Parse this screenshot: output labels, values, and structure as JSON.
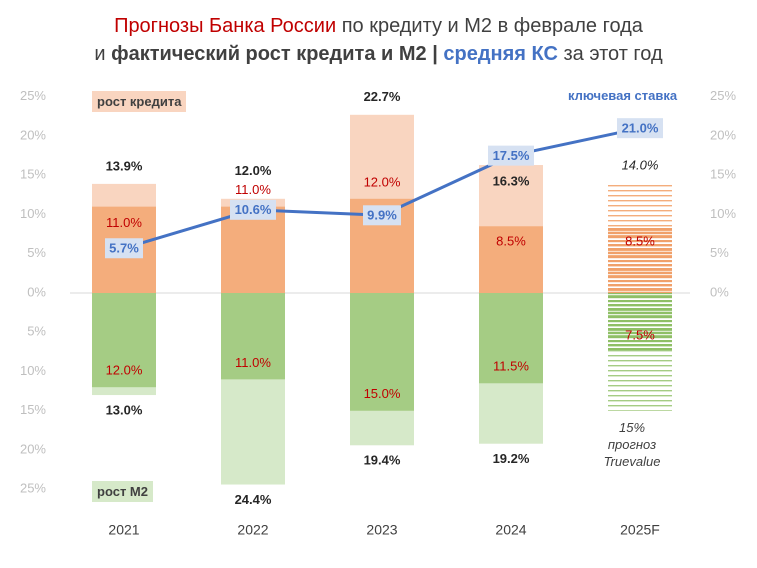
{
  "title": {
    "line1_red": "Прогнозы Банка России",
    "line1_rest": "по кредиту и М2 в феврале года",
    "line2_prefix": "и",
    "line2_bold": "фактический рост кредита и М2",
    "line2_sep": "|",
    "line2_blue": "средняя КС",
    "line2_suffix": "за этот год"
  },
  "legend": {
    "credit": "рост кредита",
    "m2": "рост М2",
    "rate": "ключевая ставка"
  },
  "note": {
    "line1": "15%",
    "line2": "прогноз",
    "line3": "Truevalue"
  },
  "colors": {
    "credit_fact": "#f9d5c0",
    "credit_forecast": "#f4ad7c",
    "m2_fact": "#d6e9c9",
    "m2_forecast": "#a5cc84",
    "rate_line": "#4472c4",
    "rate_label_bg": "#d6e1f2",
    "red_text": "#c00000"
  },
  "chart_data": {
    "type": "bar",
    "categories": [
      "2021",
      "2022",
      "2023",
      "2024",
      "2025F"
    ],
    "y_left_ticks": [
      "25%",
      "20%",
      "15%",
      "10%",
      "5%",
      "0%",
      "5%",
      "10%",
      "15%",
      "20%",
      "25%"
    ],
    "y_right_ticks": [
      "25%",
      "20%",
      "15%",
      "10%",
      "5%",
      "0%"
    ],
    "ylim": [
      -25,
      25
    ],
    "series": [
      {
        "name": "Фактический рост кредита",
        "values": [
          13.9,
          12.0,
          22.7,
          16.3,
          14.0
        ],
        "labels": [
          "13.9%",
          "12.0%",
          "22.7%",
          "16.3%",
          "14.0%"
        ]
      },
      {
        "name": "Прогноз ЦБ по кредиту",
        "values": [
          11.0,
          11.0,
          12.0,
          8.5,
          8.5
        ],
        "labels": [
          "11.0%",
          "11.0%",
          "12.0%",
          "8.5%",
          "8.5%"
        ]
      },
      {
        "name": "Фактический рост М2",
        "values": [
          13.0,
          24.4,
          19.4,
          19.2,
          15.0
        ],
        "labels": [
          "13.0%",
          "24.4%",
          "19.4%",
          "19.2%",
          ""
        ]
      },
      {
        "name": "Прогноз ЦБ по М2",
        "values": [
          12.0,
          11.0,
          15.0,
          11.5,
          7.5
        ],
        "labels": [
          "12.0%",
          "11.0%",
          "15.0%",
          "11.5%",
          "7.5%"
        ]
      },
      {
        "name": "Средняя ключевая ставка",
        "type": "line",
        "values": [
          5.7,
          10.6,
          9.9,
          17.5,
          21.0
        ],
        "labels": [
          "5.7%",
          "10.6%",
          "9.9%",
          "17.5%",
          "21.0%"
        ]
      }
    ],
    "forecast_category": "2025F"
  }
}
